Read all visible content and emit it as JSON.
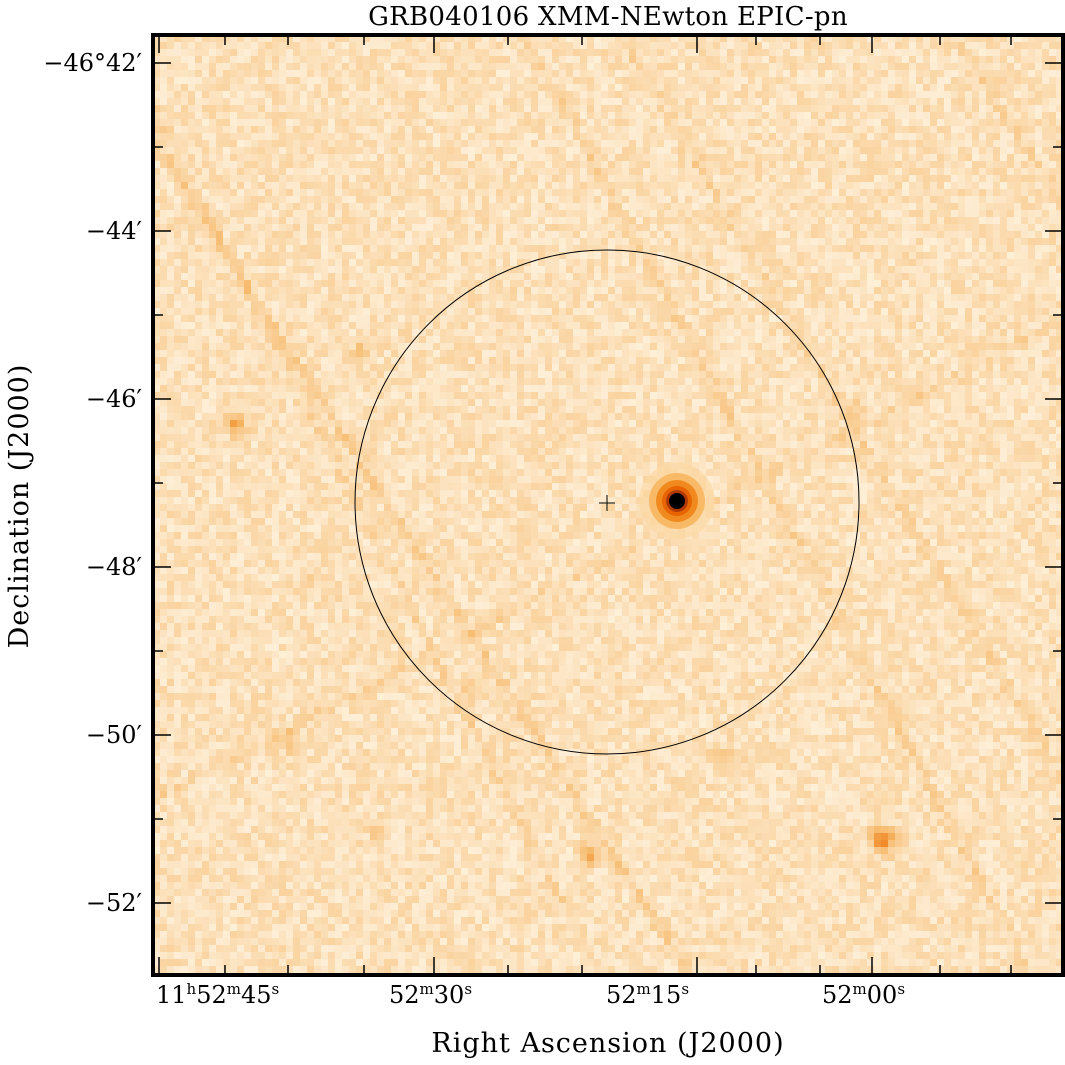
{
  "figure": {
    "title": "GRB040106 XMM-NEwton EPIC-pn",
    "xlabel": "Right Ascension (J2000)",
    "ylabel": "Declination (J2000)",
    "ra_ticks": [
      {
        "h": "11",
        "hsup": "h",
        "m": "52",
        "msup": "m",
        "s": "45",
        "ssup": "s"
      },
      {
        "m": "52",
        "msup": "m",
        "s": "30",
        "ssup": "s"
      },
      {
        "m": "52",
        "msup": "m",
        "s": "15",
        "ssup": "s"
      },
      {
        "m": "52",
        "msup": "m",
        "s": "00",
        "ssup": "s"
      }
    ],
    "dec_ticks": [
      {
        "deg": "−46°",
        "min": "42′"
      },
      {
        "min": "−44′"
      },
      {
        "min": "−46′"
      },
      {
        "min": "−48′"
      },
      {
        "min": "−50′"
      },
      {
        "min": "−52′"
      }
    ]
  },
  "image": {
    "colormap": "heat",
    "colors": {
      "low": "#fff8ea",
      "mid": "#f6b766",
      "high": "#ee6a00",
      "peak": "#000000"
    },
    "sources": [
      {
        "name": "bright-source",
        "intensity": 1.0
      },
      {
        "name": "source-lower-right",
        "intensity": 0.6
      },
      {
        "name": "source-left",
        "intensity": 0.45
      },
      {
        "name": "source-bottom",
        "intensity": 0.45
      }
    ],
    "overlays": [
      "error-circle",
      "center-cross"
    ]
  }
}
